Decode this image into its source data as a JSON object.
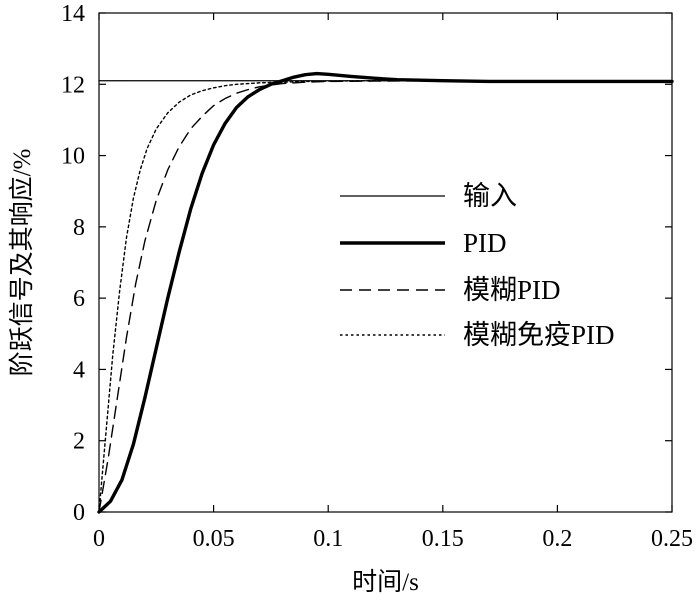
{
  "chart_data": {
    "type": "line",
    "xlabel": "时间/s",
    "ylabel": "阶跃信号及其响应/%",
    "xlim": [
      0,
      0.25
    ],
    "ylim": [
      0,
      14
    ],
    "xticks": [
      {
        "value": 0,
        "label": "0"
      },
      {
        "value": 0.05,
        "label": "0.05"
      },
      {
        "value": 0.1,
        "label": "0.1"
      },
      {
        "value": 0.15,
        "label": "0.15"
      },
      {
        "value": 0.2,
        "label": "0.2"
      },
      {
        "value": 0.25,
        "label": "0.25"
      }
    ],
    "yticks": [
      {
        "value": 0,
        "label": "0"
      },
      {
        "value": 2,
        "label": "2"
      },
      {
        "value": 4,
        "label": "4"
      },
      {
        "value": 6,
        "label": "6"
      },
      {
        "value": 8,
        "label": "8"
      },
      {
        "value": 10,
        "label": "10"
      },
      {
        "value": 12,
        "label": "12"
      },
      {
        "value": 14,
        "label": "14"
      }
    ],
    "grid": false,
    "legend_position": "center-right",
    "series": [
      {
        "name": "输入",
        "style": "solid-thin",
        "color": "#000000",
        "x": [
          0,
          0.25
        ],
        "y": [
          12.1,
          12.1
        ]
      },
      {
        "name": "PID",
        "style": "solid-thick",
        "color": "#000000",
        "x": [
          0,
          0.005,
          0.01,
          0.015,
          0.02,
          0.025,
          0.03,
          0.035,
          0.04,
          0.045,
          0.05,
          0.055,
          0.06,
          0.065,
          0.07,
          0.075,
          0.08,
          0.085,
          0.09,
          0.095,
          0.1,
          0.11,
          0.12,
          0.13,
          0.15,
          0.17,
          0.2,
          0.25
        ],
        "y": [
          0,
          0.3,
          0.9,
          1.9,
          3.2,
          4.6,
          6.0,
          7.3,
          8.5,
          9.5,
          10.3,
          10.9,
          11.35,
          11.65,
          11.85,
          12.0,
          12.1,
          12.2,
          12.27,
          12.3,
          12.28,
          12.22,
          12.17,
          12.13,
          12.1,
          12.08,
          12.08,
          12.08
        ]
      },
      {
        "name": "模糊PID",
        "style": "dashed",
        "color": "#000000",
        "x": [
          0,
          0.004,
          0.008,
          0.012,
          0.016,
          0.02,
          0.025,
          0.03,
          0.035,
          0.04,
          0.045,
          0.05,
          0.055,
          0.06,
          0.065,
          0.07,
          0.075,
          0.08,
          0.09,
          0.1,
          0.12,
          0.15,
          0.2,
          0.25
        ],
        "y": [
          0,
          1.5,
          3.2,
          4.9,
          6.4,
          7.6,
          8.75,
          9.6,
          10.25,
          10.75,
          11.1,
          11.4,
          11.6,
          11.75,
          11.85,
          11.93,
          11.98,
          12.02,
          12.06,
          12.08,
          12.09,
          12.1,
          12.1,
          12.1
        ]
      },
      {
        "name": "模糊免疫PID",
        "style": "dotted",
        "color": "#000000",
        "x": [
          0,
          0.003,
          0.006,
          0.009,
          0.012,
          0.015,
          0.018,
          0.021,
          0.025,
          0.03,
          0.035,
          0.04,
          0.045,
          0.05,
          0.055,
          0.06,
          0.07,
          0.08,
          0.09,
          0.1,
          0.12,
          0.15,
          0.2,
          0.25
        ],
        "y": [
          0,
          2.2,
          4.4,
          6.2,
          7.7,
          8.8,
          9.6,
          10.2,
          10.75,
          11.2,
          11.5,
          11.7,
          11.82,
          11.9,
          11.96,
          12.0,
          12.04,
          12.06,
          12.08,
          12.09,
          12.1,
          12.1,
          12.1,
          12.1
        ]
      }
    ]
  }
}
